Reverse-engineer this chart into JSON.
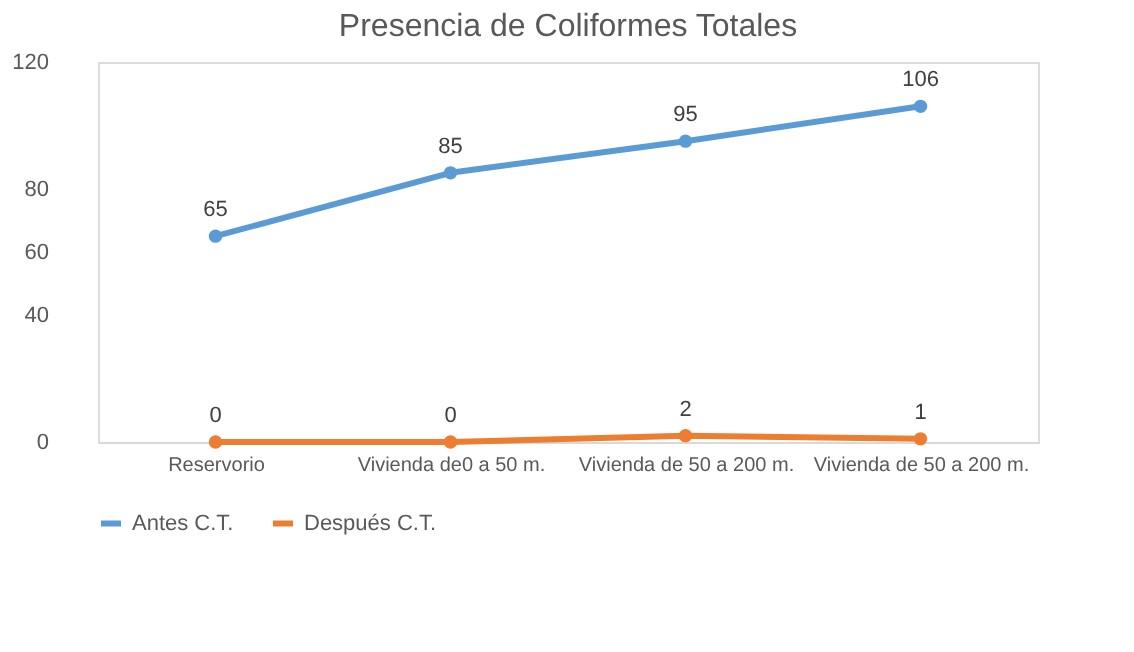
{
  "chart_data": {
    "type": "line",
    "title": "Presencia de Coliformes Totales",
    "categories": [
      "Reservorio",
      "Vivienda de0 a 50 m.",
      "Vivienda de 50 a 200 m.",
      "Vivienda de 50 a 200 m."
    ],
    "series": [
      {
        "name": "Antes  C.T.",
        "color": "#5b9bd5",
        "values": [
          65,
          85,
          95,
          106
        ]
      },
      {
        "name": "Después  C.T.",
        "color": "#ed7d31",
        "values": [
          0,
          0,
          2,
          1
        ]
      }
    ],
    "ylim": [
      0,
      120
    ],
    "yticks": [
      0,
      40,
      60,
      80,
      120
    ],
    "grid": false,
    "legend": "bottom",
    "marker": "circle",
    "data_labels": true,
    "line_style": "solid"
  }
}
